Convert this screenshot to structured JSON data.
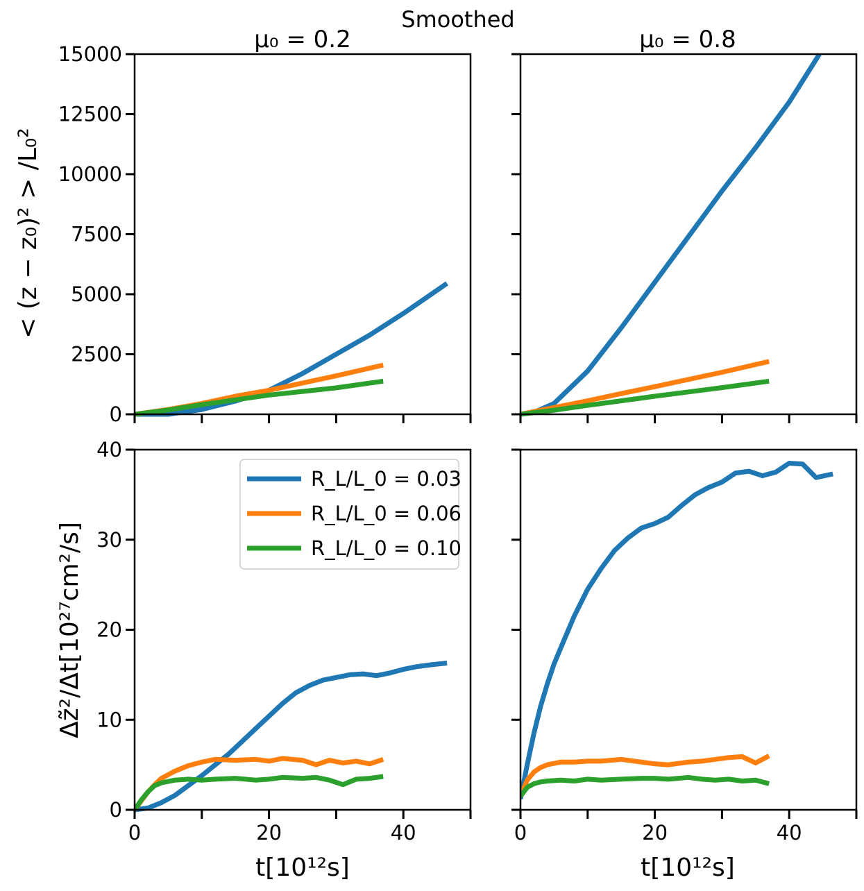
{
  "figure": {
    "suptitle": "Smoothed",
    "ylabel_top": "< (z − z₀)² > /L₀²",
    "ylabel_bottom": "Δz̃²/Δt[10²⁷cm²/s]",
    "xlabel": "t[10¹²s]",
    "legend": [
      {
        "label": "R_L/L_0 = 0.03",
        "color": "#1f77b4"
      },
      {
        "label": "R_L/L_0 = 0.06",
        "color": "#ff7f0e"
      },
      {
        "label": "R_L/L_0 = 0.10",
        "color": "#2ca02c"
      }
    ]
  },
  "chart_data": [
    {
      "panel": "top-left",
      "type": "line",
      "title": "μ₀ = 0.2",
      "xlim": [
        0,
        50
      ],
      "ylim": [
        0,
        15000
      ],
      "xticks": [
        0,
        10,
        20,
        30,
        40,
        50
      ],
      "xticklabels": [],
      "yticks": [
        0,
        2500,
        5000,
        7500,
        10000,
        12500,
        15000
      ],
      "yticklabels": [
        "0",
        "2500",
        "5000",
        "7500",
        "10000",
        "12500",
        "15000"
      ],
      "series": [
        {
          "color": "#1f77b4",
          "x": [
            0,
            5,
            10,
            15,
            20,
            25,
            30,
            35,
            40,
            46.5
          ],
          "y": [
            0,
            0,
            200,
            550,
            1000,
            1700,
            2500,
            3300,
            4200,
            5450
          ]
        },
        {
          "color": "#ff7f0e",
          "x": [
            0,
            5,
            10,
            15,
            20,
            25,
            30,
            37
          ],
          "y": [
            0,
            200,
            450,
            750,
            1000,
            1300,
            1600,
            2050
          ]
        },
        {
          "color": "#2ca02c",
          "x": [
            0,
            5,
            10,
            15,
            20,
            25,
            30,
            37
          ],
          "y": [
            0,
            180,
            400,
            600,
            800,
            950,
            1100,
            1380
          ]
        }
      ]
    },
    {
      "panel": "top-right",
      "type": "line",
      "title": "μ₀ = 0.8",
      "xlim": [
        0,
        50
      ],
      "ylim": [
        0,
        15000
      ],
      "xticks": [
        0,
        10,
        20,
        30,
        40,
        50
      ],
      "xticklabels": [],
      "yticks": [
        0,
        2500,
        5000,
        7500,
        10000,
        12500,
        15000
      ],
      "yticklabels": [],
      "series": [
        {
          "color": "#1f77b4",
          "x": [
            0,
            2,
            5,
            10,
            15,
            20,
            25,
            30,
            35,
            40,
            44.5
          ],
          "y": [
            0,
            80,
            450,
            1800,
            3600,
            5500,
            7400,
            9300,
            11100,
            13000,
            15000
          ]
        },
        {
          "color": "#ff7f0e",
          "x": [
            0,
            5,
            10,
            15,
            20,
            25,
            30,
            37
          ],
          "y": [
            0,
            280,
            560,
            860,
            1150,
            1450,
            1750,
            2200
          ]
        },
        {
          "color": "#2ca02c",
          "x": [
            0,
            5,
            10,
            15,
            20,
            25,
            30,
            37
          ],
          "y": [
            0,
            170,
            370,
            560,
            750,
            930,
            1110,
            1380
          ]
        }
      ]
    },
    {
      "panel": "bottom-left",
      "type": "line",
      "title": "",
      "xlim": [
        0,
        50
      ],
      "ylim": [
        0,
        40
      ],
      "xticks": [
        0,
        10,
        20,
        30,
        40,
        50
      ],
      "xticklabels": [
        "0",
        "",
        "20",
        "",
        "40",
        ""
      ],
      "yticks": [
        0,
        10,
        20,
        30,
        40
      ],
      "yticklabels": [
        "0",
        "10",
        "20",
        "30",
        "40"
      ],
      "series": [
        {
          "color": "#1f77b4",
          "x": [
            0,
            2,
            4,
            6,
            8,
            10,
            12,
            14,
            16,
            18,
            20,
            22,
            24,
            26,
            28,
            30,
            32,
            34,
            36,
            38,
            40,
            42,
            44,
            46.5
          ],
          "y": [
            0,
            0.2,
            0.8,
            1.6,
            2.7,
            3.8,
            5.0,
            6.2,
            7.6,
            9.0,
            10.4,
            11.8,
            13.0,
            13.8,
            14.4,
            14.7,
            15.0,
            15.1,
            14.9,
            15.2,
            15.6,
            15.9,
            16.1,
            16.3
          ]
        },
        {
          "color": "#ff7f0e",
          "x": [
            0,
            1,
            2,
            3,
            4,
            6,
            8,
            10,
            12,
            15,
            18,
            20,
            22,
            25,
            27,
            29,
            31,
            33,
            35,
            37
          ],
          "y": [
            0,
            1.0,
            2.0,
            2.8,
            3.5,
            4.3,
            4.9,
            5.3,
            5.6,
            5.5,
            5.6,
            5.4,
            5.7,
            5.5,
            5.0,
            5.5,
            5.2,
            5.4,
            5.1,
            5.6
          ]
        },
        {
          "color": "#2ca02c",
          "x": [
            0,
            1,
            2,
            3,
            4,
            6,
            8,
            10,
            12,
            15,
            18,
            20,
            22,
            25,
            27,
            29,
            31,
            33,
            35,
            37
          ],
          "y": [
            0,
            1.1,
            2.0,
            2.7,
            3.0,
            3.3,
            3.4,
            3.3,
            3.4,
            3.5,
            3.3,
            3.4,
            3.6,
            3.5,
            3.6,
            3.3,
            2.8,
            3.4,
            3.5,
            3.7
          ]
        }
      ]
    },
    {
      "panel": "bottom-right",
      "type": "line",
      "title": "",
      "xlim": [
        0,
        50
      ],
      "ylim": [
        0,
        40
      ],
      "xticks": [
        0,
        10,
        20,
        30,
        40,
        50
      ],
      "xticklabels": [
        "0",
        "",
        "20",
        "",
        "40",
        ""
      ],
      "yticks": [
        0,
        10,
        20,
        30,
        40
      ],
      "yticklabels": [],
      "series": [
        {
          "color": "#1f77b4",
          "x": [
            0,
            1,
            2,
            3,
            4,
            5,
            6,
            8,
            10,
            12,
            14,
            16,
            18,
            20,
            22,
            24,
            26,
            28,
            30,
            32,
            34,
            36,
            38,
            40,
            42,
            44,
            46.5
          ],
          "y": [
            1.2,
            5.0,
            8.5,
            11.5,
            14.0,
            16.2,
            18.0,
            21.5,
            24.5,
            26.8,
            28.8,
            30.2,
            31.3,
            31.8,
            32.5,
            33.8,
            35.0,
            35.8,
            36.4,
            37.4,
            37.6,
            37.1,
            37.5,
            38.5,
            38.4,
            36.9,
            37.3
          ]
        },
        {
          "color": "#ff7f0e",
          "x": [
            0,
            1,
            2,
            3,
            4,
            6,
            8,
            10,
            12,
            15,
            18,
            20,
            22,
            25,
            27,
            29,
            31,
            33,
            35,
            37
          ],
          "y": [
            1.5,
            3.3,
            4.2,
            4.7,
            5.0,
            5.3,
            5.3,
            5.4,
            5.4,
            5.6,
            5.3,
            5.1,
            5.0,
            5.3,
            5.4,
            5.6,
            5.8,
            5.9,
            5.2,
            6.0
          ]
        },
        {
          "color": "#2ca02c",
          "x": [
            0,
            1,
            2,
            3,
            4,
            6,
            8,
            10,
            12,
            15,
            18,
            20,
            22,
            25,
            27,
            29,
            31,
            33,
            35,
            37
          ],
          "y": [
            1.5,
            2.5,
            2.9,
            3.1,
            3.2,
            3.3,
            3.2,
            3.4,
            3.3,
            3.4,
            3.5,
            3.5,
            3.4,
            3.6,
            3.4,
            3.3,
            3.4,
            3.2,
            3.3,
            2.9
          ]
        }
      ]
    }
  ]
}
